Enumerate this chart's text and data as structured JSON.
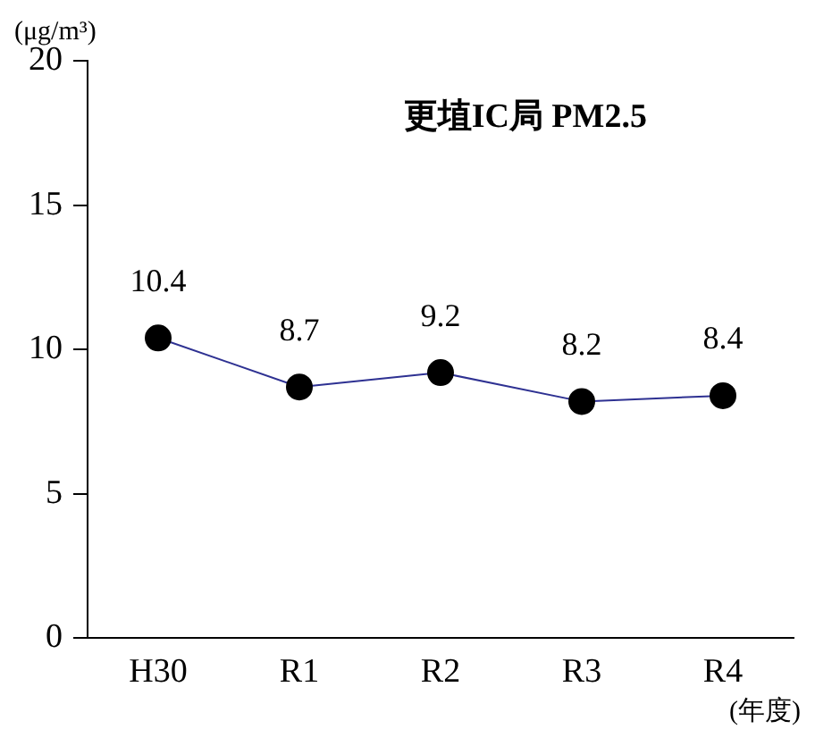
{
  "chart_data": {
    "type": "line",
    "title": "更埴IC局 PM2.5",
    "ylabel": "(μg/m³)",
    "xlabel": "(年度)",
    "categories": [
      "H30",
      "R1",
      "R2",
      "R3",
      "R4"
    ],
    "series": [
      {
        "color": "#2e3192",
        "values": [
          10.4,
          8.7,
          9.2,
          8.2,
          8.4
        ]
      }
    ],
    "ylim": [
      0,
      20
    ],
    "yticks": [
      0,
      5,
      10,
      15,
      20
    ],
    "grid": false,
    "legend": false,
    "marker": "circle",
    "line_style": "solid",
    "data_labels": true
  }
}
